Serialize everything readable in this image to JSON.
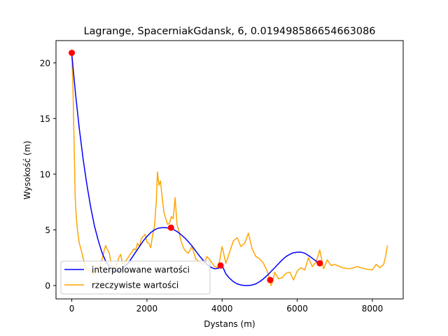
{
  "chart_data": {
    "type": "line",
    "title": "Lagrange, SpacerniakGdansk, 6, 0.019498586654663086",
    "xlabel": "Dystans (m)",
    "ylabel": "Wysokość (m)",
    "xlim": [
      -420,
      8820
    ],
    "ylim": [
      -1.2,
      22.0
    ],
    "xticks": [
      0,
      2000,
      4000,
      6000,
      8000
    ],
    "yticks": [
      0,
      5,
      10,
      15,
      20
    ],
    "xtick_labels": [
      "0",
      "2000",
      "4000",
      "6000",
      "8000"
    ],
    "ytick_labels": [
      "0",
      "5",
      "10",
      "15",
      "20"
    ],
    "legend_position": "lower-left",
    "grid": false,
    "series": [
      {
        "name": "interpolowane wartości",
        "color": "#0000ff",
        "x": [
          0,
          100,
          200,
          300,
          400,
          500,
          600,
          700,
          800,
          900,
          1000,
          1100,
          1200,
          1300,
          1400,
          1500,
          1600,
          1700,
          1800,
          1900,
          2000,
          2100,
          2200,
          2300,
          2400,
          2500,
          2600,
          2700,
          2800,
          2900,
          3000,
          3100,
          3200,
          3300,
          3400,
          3500,
          3600,
          3700,
          3800,
          3900,
          4000,
          4100,
          4200,
          4300,
          4400,
          4500,
          4600,
          4700,
          4800,
          4900,
          5000,
          5100,
          5200,
          5300,
          5400,
          5500,
          5600,
          5700,
          5800,
          5900,
          6000,
          6100,
          6200,
          6300,
          6400,
          6500,
          6600
        ],
        "values": [
          20.8,
          17.2,
          14.1,
          11.4,
          9.1,
          7.1,
          5.4,
          4.1,
          3.0,
          2.2,
          1.7,
          1.4,
          1.3,
          1.4,
          1.7,
          2.0,
          2.5,
          3.0,
          3.5,
          4.0,
          4.4,
          4.75,
          5.0,
          5.15,
          5.2,
          5.2,
          5.15,
          5.05,
          4.85,
          4.6,
          4.3,
          3.95,
          3.55,
          3.1,
          2.65,
          2.25,
          1.9,
          1.65,
          1.5,
          1.55,
          1.8,
          1.05,
          0.65,
          0.35,
          0.15,
          0.05,
          0.0,
          0.0,
          0.05,
          0.15,
          0.35,
          0.6,
          0.9,
          1.25,
          1.6,
          1.95,
          2.3,
          2.6,
          2.8,
          2.95,
          3.0,
          3.0,
          2.9,
          2.7,
          2.45,
          2.2,
          2.0
        ]
      },
      {
        "name": "rzeczywiste wartości",
        "color": "#ffa500",
        "x": [
          0,
          30,
          60,
          90,
          120,
          150,
          200,
          250,
          300,
          350,
          400,
          450,
          500,
          550,
          600,
          650,
          700,
          750,
          800,
          850,
          900,
          950,
          1000,
          1050,
          1100,
          1150,
          1200,
          1250,
          1300,
          1350,
          1400,
          1450,
          1500,
          1550,
          1600,
          1650,
          1700,
          1750,
          1800,
          1850,
          1900,
          1950,
          2000,
          2050,
          2100,
          2150,
          2200,
          2250,
          2280,
          2320,
          2360,
          2400,
          2450,
          2500,
          2550,
          2600,
          2650,
          2700,
          2750,
          2800,
          2850,
          2900,
          2950,
          3000,
          3100,
          3200,
          3300,
          3400,
          3500,
          3600,
          3700,
          3800,
          3900,
          4000,
          4100,
          4200,
          4300,
          4400,
          4500,
          4600,
          4700,
          4800,
          4900,
          5000,
          5100,
          5200,
          5250,
          5300,
          5350,
          5400,
          5500,
          5600,
          5700,
          5800,
          5900,
          6000,
          6100,
          6200,
          6300,
          6400,
          6500,
          6600,
          6700,
          6800,
          6900,
          7000,
          7200,
          7400,
          7600,
          7800,
          8000,
          8100,
          8200,
          8300,
          8350,
          8400
        ],
        "values": [
          20.8,
          18.0,
          13.0,
          8.0,
          6.1,
          5.0,
          3.8,
          3.2,
          2.5,
          1.8,
          1.5,
          1.3,
          1.4,
          1.2,
          1.0,
          1.3,
          1.5,
          1.8,
          2.3,
          3.0,
          3.6,
          3.2,
          2.9,
          1.8,
          1.6,
          1.5,
          1.9,
          2.5,
          2.8,
          2.0,
          1.9,
          2.3,
          2.5,
          2.8,
          3.0,
          3.3,
          3.2,
          3.8,
          3.5,
          4.2,
          4.4,
          4.6,
          3.9,
          3.8,
          3.4,
          4.5,
          5.3,
          7.6,
          10.2,
          9.0,
          9.4,
          8.1,
          6.6,
          6.0,
          5.5,
          5.6,
          6.2,
          6.0,
          7.9,
          5.5,
          4.9,
          4.1,
          3.6,
          3.2,
          2.9,
          3.5,
          2.4,
          2.1,
          1.9,
          2.6,
          2.2,
          1.7,
          1.6,
          3.5,
          2.0,
          3.0,
          4.0,
          4.3,
          3.5,
          3.8,
          4.7,
          3.3,
          2.6,
          2.4,
          2.0,
          1.3,
          0.8,
          0.0,
          0.4,
          1.2,
          0.6,
          0.7,
          1.1,
          1.2,
          0.5,
          1.3,
          1.6,
          1.4,
          2.5,
          1.7,
          2.1,
          3.2,
          1.5,
          2.3,
          1.8,
          1.9,
          1.6,
          1.5,
          1.7,
          1.5,
          1.4,
          1.9,
          1.6,
          1.9,
          2.6,
          3.6
        ]
      },
      {
        "name": "",
        "type": "scatter",
        "color": "#ff0000",
        "x": [
          0,
          2640,
          3960,
          5280,
          6600
        ],
        "values": [
          20.9,
          5.2,
          1.8,
          0.5,
          2.0
        ]
      }
    ]
  }
}
